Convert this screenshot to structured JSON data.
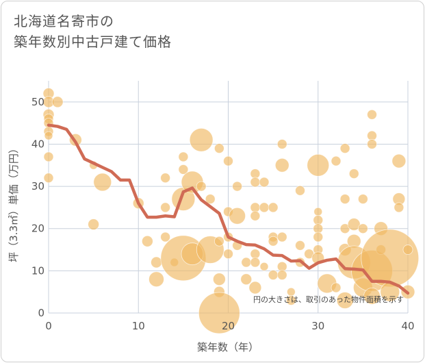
{
  "chart_data": {
    "type": "scatter",
    "title": [
      "北海道名寄市の",
      "築年数別中古戸建て価格"
    ],
    "xlabel": "築年数（年）",
    "ylabel": "坪（3.3㎡）単価（万円）",
    "xlim": [
      0,
      40
    ],
    "ylim": [
      0,
      55
    ],
    "xticks": [
      "0",
      "10",
      "20",
      "30",
      "40"
    ],
    "yticks": [
      "0",
      "10",
      "20",
      "30",
      "40",
      "50"
    ],
    "note": "円の大きさは、取引のあった物件面積を示す",
    "colors": {
      "bubble": "#f0b962",
      "trend": "#d06b55",
      "grid": "#c8d0dc",
      "text": "#555555"
    },
    "trend": {
      "x": [
        0,
        1,
        2,
        3,
        4,
        5,
        6,
        7,
        8,
        9,
        10,
        11,
        12,
        13,
        14,
        15,
        16,
        17,
        18,
        19,
        20,
        21,
        22,
        23,
        24,
        25,
        26,
        27,
        28,
        29,
        30,
        31,
        32,
        33,
        34,
        35,
        36,
        37,
        38,
        39,
        40
      ],
      "y": [
        44.5,
        44.2,
        43.5,
        40.5,
        36.5,
        35.5,
        34.5,
        33.5,
        31.5,
        31.5,
        26,
        22.7,
        22.7,
        23,
        22.8,
        28.7,
        29.6,
        26.8,
        25.2,
        23.6,
        18,
        17,
        16.2,
        16.1,
        15.2,
        13.7,
        13.6,
        12.3,
        12.4,
        10.6,
        11.9,
        12.5,
        12.8,
        10.5,
        10.4,
        10.2,
        7.5,
        7.5,
        7.3,
        6.4,
        4.7
      ]
    },
    "points": [
      {
        "x": 0,
        "y": 52,
        "s": 8
      },
      {
        "x": 0,
        "y": 50,
        "s": 8
      },
      {
        "x": 0,
        "y": 47,
        "s": 8
      },
      {
        "x": 0,
        "y": 46,
        "s": 7
      },
      {
        "x": 0,
        "y": 45,
        "s": 7
      },
      {
        "x": 0,
        "y": 43,
        "s": 7
      },
      {
        "x": 0,
        "y": 42,
        "s": 6
      },
      {
        "x": 0,
        "y": 37,
        "s": 7
      },
      {
        "x": 0,
        "y": 32,
        "s": 7
      },
      {
        "x": 1,
        "y": 50,
        "s": 8
      },
      {
        "x": 3,
        "y": 41,
        "s": 9
      },
      {
        "x": 5,
        "y": 35,
        "s": 6
      },
      {
        "x": 6,
        "y": 31,
        "s": 13
      },
      {
        "x": 5,
        "y": 21,
        "s": 8
      },
      {
        "x": 10,
        "y": 26,
        "s": 8
      },
      {
        "x": 11,
        "y": 17,
        "s": 8
      },
      {
        "x": 12,
        "y": 12,
        "s": 8
      },
      {
        "x": 12,
        "y": 8,
        "s": 11
      },
      {
        "x": 13,
        "y": 32,
        "s": 7
      },
      {
        "x": 13,
        "y": 25,
        "s": 7
      },
      {
        "x": 13,
        "y": 18,
        "s": 7
      },
      {
        "x": 14,
        "y": 12,
        "s": 6
      },
      {
        "x": 15,
        "y": 13,
        "s": 33
      },
      {
        "x": 15,
        "y": 27,
        "s": 17
      },
      {
        "x": 15,
        "y": 34,
        "s": 7
      },
      {
        "x": 15,
        "y": 37,
        "s": 7
      },
      {
        "x": 16,
        "y": 31,
        "s": 16
      },
      {
        "x": 16,
        "y": 14,
        "s": 16
      },
      {
        "x": 17,
        "y": 41,
        "s": 17
      },
      {
        "x": 17,
        "y": 30,
        "s": 7
      },
      {
        "x": 18,
        "y": 27,
        "s": 7
      },
      {
        "x": 18,
        "y": 15,
        "s": 20
      },
      {
        "x": 19,
        "y": 39,
        "s": 7
      },
      {
        "x": 19,
        "y": 17,
        "s": 7
      },
      {
        "x": 19,
        "y": 8,
        "s": 9
      },
      {
        "x": 19,
        "y": 5,
        "s": 8
      },
      {
        "x": 19,
        "y": 0,
        "s": 30
      },
      {
        "x": 20,
        "y": 36,
        "s": 7
      },
      {
        "x": 20,
        "y": 24,
        "s": 7
      },
      {
        "x": 20,
        "y": 18,
        "s": 7
      },
      {
        "x": 20,
        "y": 14,
        "s": 7
      },
      {
        "x": 21,
        "y": 30,
        "s": 7
      },
      {
        "x": 21,
        "y": 23,
        "s": 12
      },
      {
        "x": 21,
        "y": 16,
        "s": 7
      },
      {
        "x": 22,
        "y": 12,
        "s": 7
      },
      {
        "x": 22,
        "y": 8,
        "s": 8
      },
      {
        "x": 23,
        "y": 33,
        "s": 7
      },
      {
        "x": 23,
        "y": 31,
        "s": 7
      },
      {
        "x": 23,
        "y": 25,
        "s": 7
      },
      {
        "x": 23,
        "y": 23,
        "s": 7
      },
      {
        "x": 23,
        "y": 14,
        "s": 7
      },
      {
        "x": 23,
        "y": 12,
        "s": 7
      },
      {
        "x": 23,
        "y": 6,
        "s": 9
      },
      {
        "x": 24,
        "y": 31,
        "s": 7
      },
      {
        "x": 24,
        "y": 25,
        "s": 7
      },
      {
        "x": 24,
        "y": 11,
        "s": 6
      },
      {
        "x": 25,
        "y": 25,
        "s": 7
      },
      {
        "x": 25,
        "y": 18,
        "s": 7
      },
      {
        "x": 25,
        "y": 17,
        "s": 7
      },
      {
        "x": 25,
        "y": 9,
        "s": 7
      },
      {
        "x": 26,
        "y": 40,
        "s": 7
      },
      {
        "x": 26,
        "y": 35,
        "s": 10
      },
      {
        "x": 26,
        "y": 18,
        "s": 7
      },
      {
        "x": 26,
        "y": 11,
        "s": 7
      },
      {
        "x": 26,
        "y": 9,
        "s": 7
      },
      {
        "x": 27,
        "y": 5,
        "s": 6
      },
      {
        "x": 27,
        "y": 3,
        "s": 7
      },
      {
        "x": 28,
        "y": 29,
        "s": 7
      },
      {
        "x": 28,
        "y": 16,
        "s": 7
      },
      {
        "x": 28,
        "y": 12,
        "s": 7
      },
      {
        "x": 29,
        "y": 14,
        "s": 7
      },
      {
        "x": 30,
        "y": 35,
        "s": 16
      },
      {
        "x": 30,
        "y": 24,
        "s": 6
      },
      {
        "x": 30,
        "y": 22,
        "s": 7
      },
      {
        "x": 30,
        "y": 20,
        "s": 7
      },
      {
        "x": 30,
        "y": 18,
        "s": 7
      },
      {
        "x": 30,
        "y": 15,
        "s": 7
      },
      {
        "x": 30,
        "y": 13,
        "s": 9
      },
      {
        "x": 31,
        "y": 7,
        "s": 14
      },
      {
        "x": 32,
        "y": 36,
        "s": 7
      },
      {
        "x": 32,
        "y": 6,
        "s": 7
      },
      {
        "x": 33,
        "y": 39,
        "s": 7
      },
      {
        "x": 33,
        "y": 27,
        "s": 7
      },
      {
        "x": 33,
        "y": 20,
        "s": 7
      },
      {
        "x": 33,
        "y": 15,
        "s": 9
      },
      {
        "x": 33,
        "y": 3,
        "s": 12
      },
      {
        "x": 34,
        "y": 33,
        "s": 7
      },
      {
        "x": 34,
        "y": 21,
        "s": 9
      },
      {
        "x": 34,
        "y": 17,
        "s": 10
      },
      {
        "x": 34,
        "y": 12,
        "s": 24
      },
      {
        "x": 35,
        "y": 27,
        "s": 7
      },
      {
        "x": 35,
        "y": 20,
        "s": 7
      },
      {
        "x": 35,
        "y": 6,
        "s": 14
      },
      {
        "x": 36,
        "y": 47,
        "s": 7
      },
      {
        "x": 36,
        "y": 42,
        "s": 7
      },
      {
        "x": 36,
        "y": 40,
        "s": 7
      },
      {
        "x": 36,
        "y": 10,
        "s": 30
      },
      {
        "x": 36,
        "y": 4,
        "s": 12
      },
      {
        "x": 37,
        "y": 20,
        "s": 10
      },
      {
        "x": 37,
        "y": 15,
        "s": 7
      },
      {
        "x": 38,
        "y": 13,
        "s": 42
      },
      {
        "x": 38,
        "y": 5,
        "s": 14
      },
      {
        "x": 39,
        "y": 36,
        "s": 10
      },
      {
        "x": 39,
        "y": 27,
        "s": 9
      },
      {
        "x": 39,
        "y": 25,
        "s": 7
      },
      {
        "x": 40,
        "y": 15,
        "s": 7
      },
      {
        "x": 40,
        "y": 5,
        "s": 10
      }
    ]
  }
}
